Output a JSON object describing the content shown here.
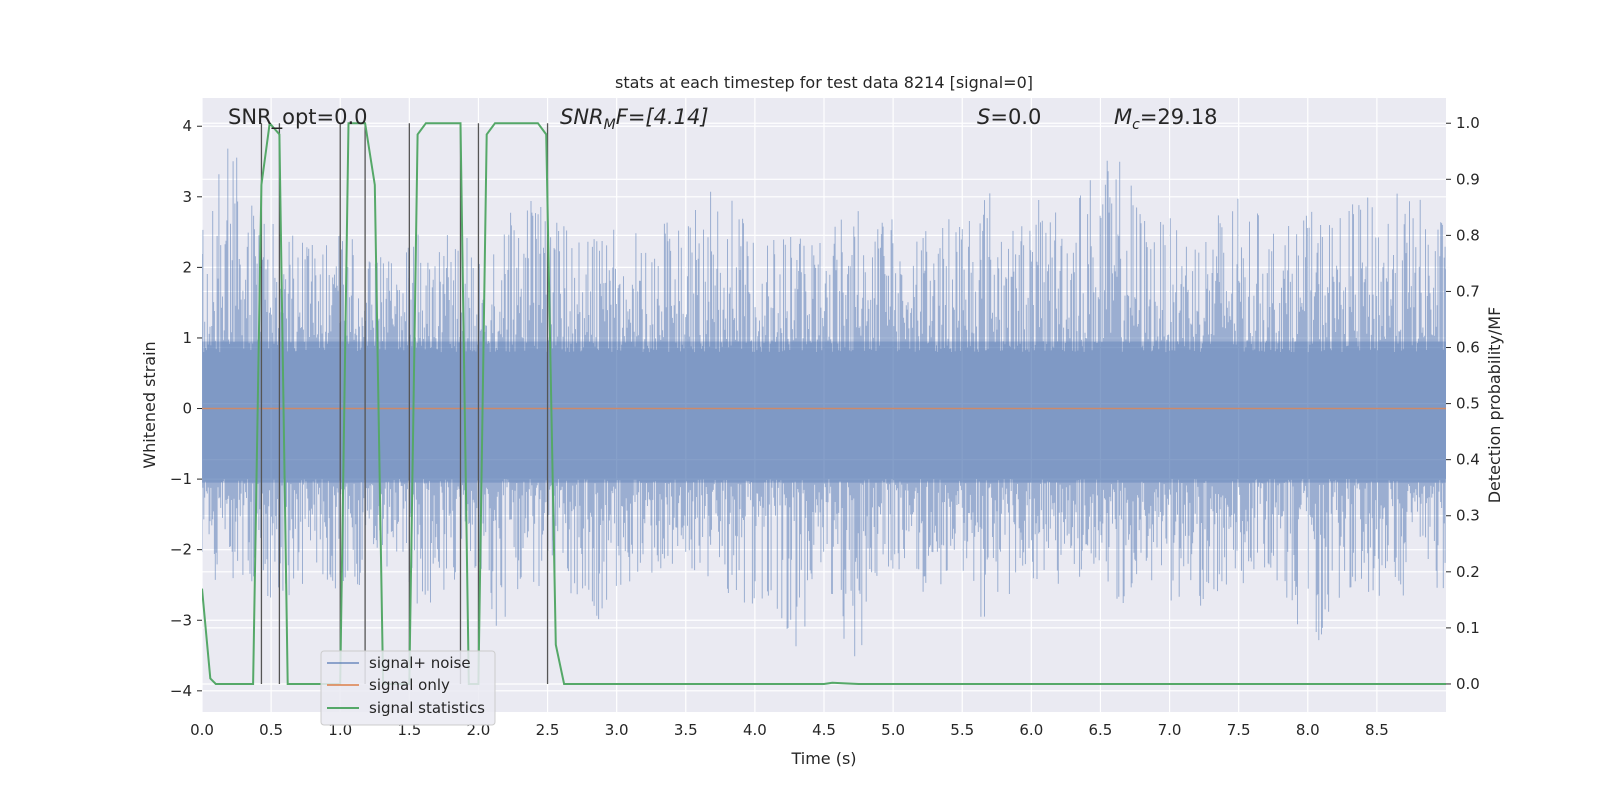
{
  "chart_data": {
    "type": "line",
    "title": "stats at each timestep for test data 8214 [signal=0]",
    "xlabel": "Time (s)",
    "ylabel": "Whitened strain",
    "ylabel_right": "Detection probability/MF",
    "xlim": [
      0.0,
      9.0
    ],
    "ylim": [
      -4.3,
      4.4
    ],
    "ylim_right": [
      -0.05,
      1.045
    ],
    "xticks": [
      "0.0",
      "0.5",
      "1.0",
      "1.5",
      "2.0",
      "2.5",
      "3.0",
      "3.5",
      "4.0",
      "4.5",
      "5.0",
      "5.5",
      "6.0",
      "6.5",
      "7.0",
      "7.5",
      "8.0",
      "8.5"
    ],
    "yticks": [
      "4",
      "3",
      "2",
      "1",
      "0",
      "−1",
      "−2",
      "−3",
      "−4"
    ],
    "yticks_right": [
      "1.0",
      "0.9",
      "0.8",
      "0.7",
      "0.6",
      "0.5",
      "0.4",
      "0.3",
      "0.2",
      "0.1",
      "0.0"
    ],
    "grid": true,
    "legend_placement": "lower-left",
    "annotations": {
      "snr_opt": "SNR_opt=0.0",
      "snr_mf_base": "SNR",
      "snr_mf_sub": "M",
      "snr_mf_rest": "F=[4.14]",
      "s": "S",
      "s_rest": "=0.0",
      "mc": "M",
      "mc_sub": "c",
      "mc_rest": "=29.18"
    },
    "colors": {
      "noise": "#4c72b0",
      "signal_only": "#dd8452",
      "statistics": "#55a868",
      "background": "#eaeaf2",
      "vlines": "#555555"
    },
    "series": [
      {
        "name": "signal+ noise",
        "axis": "left",
        "description_kind": "dense noise",
        "envelope_upper": [
          2.5,
          4.0,
          2.7,
          2.6,
          2.4,
          2.5,
          2.4,
          2.1,
          2.5,
          2.5,
          2.4,
          2.6,
          3.2,
          2.7,
          2.5,
          2.6,
          2.6,
          2.7,
          2.7,
          3.5,
          2.7,
          2.5,
          2.6,
          2.5,
          3.2,
          2.8,
          2.6,
          2.6,
          3.0,
          3.3,
          2.6,
          3.0,
          3.0,
          3.5,
          3.6,
          2.7,
          2.7,
          2.6,
          3.1,
          2.8,
          2.6,
          2.8,
          2.8,
          3.0,
          3.1,
          3.0,
          2.7
        ],
        "envelope_lower": [
          -2.6,
          -2.4,
          -2.6,
          -2.9,
          -2.4,
          -2.6,
          -2.6,
          -2.3,
          -3.1,
          -2.6,
          -2.2,
          -3.2,
          -2.5,
          -2.6,
          -3.0,
          -3.0,
          -2.4,
          -2.3,
          -2.4,
          -2.5,
          -2.8,
          -2.8,
          -3.4,
          -2.6,
          -3.9,
          -2.6,
          -2.4,
          -2.7,
          -2.7,
          -3.1,
          -2.6,
          -2.4,
          -2.6,
          -2.6,
          -2.8,
          -2.7,
          -2.8,
          -2.8,
          -2.6,
          -2.4,
          -2.6,
          -3.6,
          -2.7,
          -2.6,
          -2.8,
          -2.5,
          -2.6
        ]
      },
      {
        "name": "signal only",
        "axis": "left",
        "x": [
          0.0,
          9.0
        ],
        "values": [
          0.0,
          0.0
        ]
      },
      {
        "name": "signal statistics",
        "axis": "right",
        "x": [
          0.0,
          0.06,
          0.1,
          0.25,
          0.37,
          0.43,
          0.49,
          0.56,
          0.62,
          0.68,
          0.75,
          1.0,
          1.06,
          1.18,
          1.25,
          1.31,
          1.5,
          1.56,
          1.62,
          1.87,
          1.93,
          2.0,
          2.06,
          2.12,
          2.43,
          2.49,
          2.56,
          2.62,
          2.75,
          4.5,
          4.56,
          4.75,
          5.0,
          9.0
        ],
        "values": [
          0.17,
          0.01,
          0.0,
          0.0,
          0.0,
          0.89,
          1.0,
          0.98,
          0.0,
          0.0,
          0.0,
          0.0,
          1.0,
          1.0,
          0.89,
          0.0,
          0.0,
          0.98,
          1.0,
          1.0,
          0.0,
          0.0,
          0.98,
          1.0,
          1.0,
          0.98,
          0.07,
          0.0,
          0.0,
          0.0,
          0.002,
          0.0,
          0.0,
          0.0
        ]
      }
    ],
    "vlines_x": [
      0.43,
      0.56,
      1.0,
      1.18,
      1.5,
      1.87,
      2.0,
      2.5
    ]
  }
}
